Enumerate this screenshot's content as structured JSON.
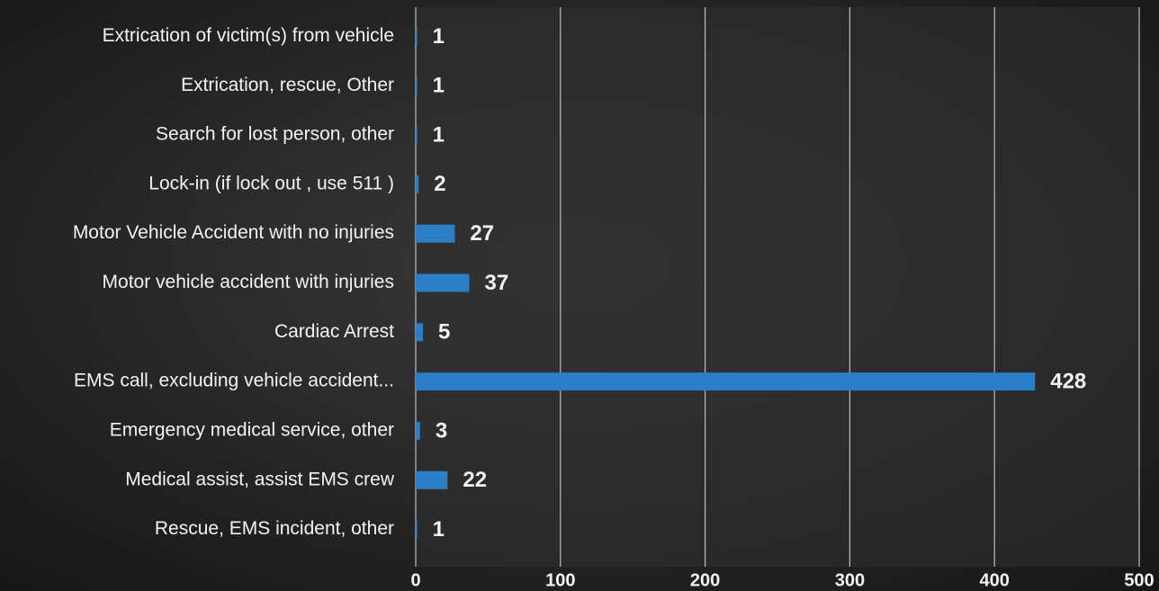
{
  "chart_data": {
    "type": "bar",
    "orientation": "horizontal",
    "categories": [
      "Extrication of victim(s) from vehicle",
      "Extrication, rescue, Other",
      "Search for lost person, other",
      "Lock-in (if lock out , use 511 )",
      "Motor Vehicle Accident with no injuries",
      "Motor vehicle accident with injuries",
      "Cardiac Arrest",
      "EMS call, excluding vehicle accident...",
      "Emergency medical service, other",
      "Medical assist, assist EMS crew",
      "Rescue, EMS incident, other"
    ],
    "values": [
      1,
      1,
      1,
      2,
      27,
      37,
      5,
      428,
      3,
      22,
      1
    ],
    "color": "#2a7fc6",
    "xlim": [
      0,
      500
    ],
    "xticks": [
      0,
      100,
      200,
      300,
      400,
      500
    ],
    "grid": true
  }
}
